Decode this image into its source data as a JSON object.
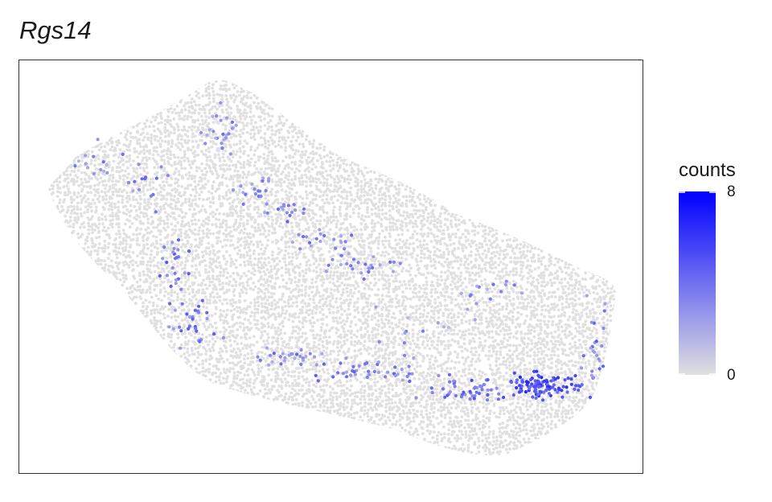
{
  "chart_data": {
    "type": "scatter",
    "title": "Rgs14",
    "xlabel": "",
    "ylabel": "",
    "legend": {
      "title": "counts",
      "min": 0,
      "max": 8,
      "min_label": "0",
      "max_label": "8",
      "low_color": "#e0e0e0",
      "high_color": "#0000ff",
      "placement": "right"
    },
    "background_color": "#e0e0e0",
    "grid": false
  }
}
